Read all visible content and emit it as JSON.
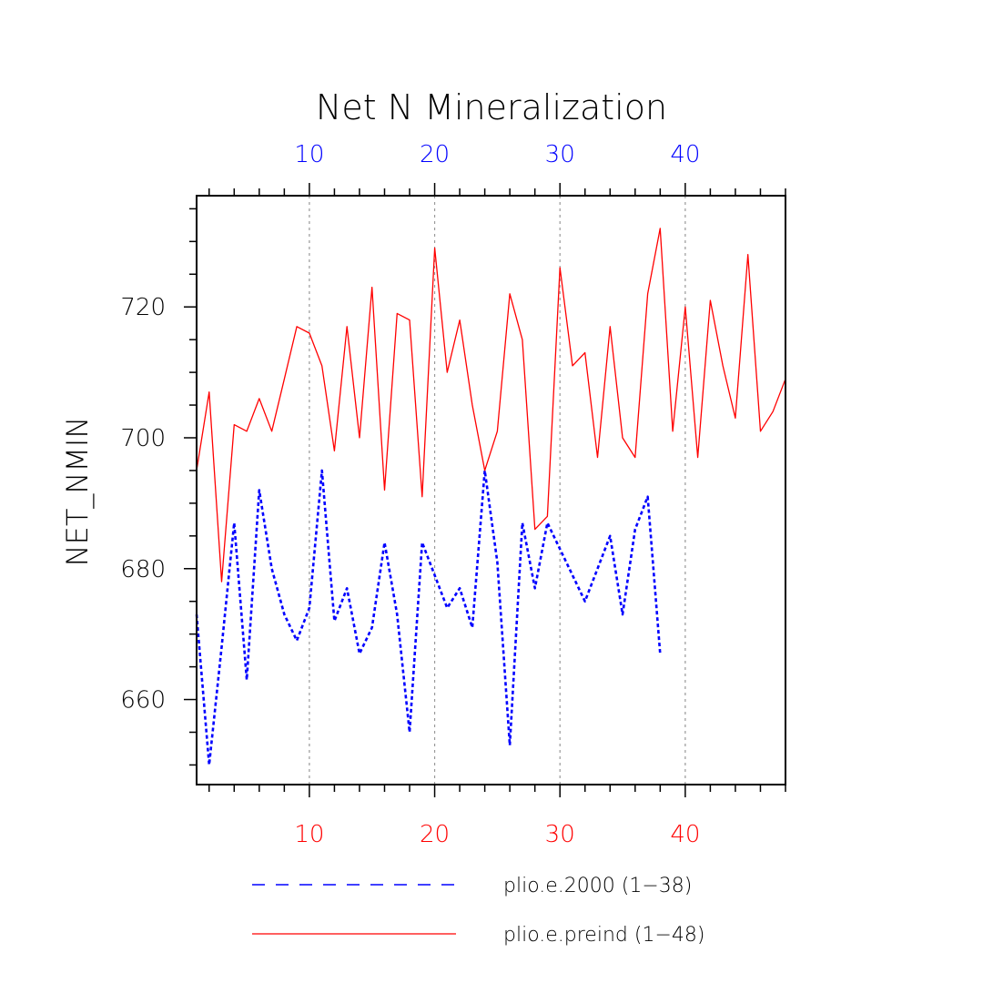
{
  "chart_data": {
    "type": "line",
    "title": "Net N Mineralization",
    "ylabel": "NET_NMIN",
    "ylim": [
      647,
      737
    ],
    "yticks": [
      "660",
      "680",
      "700",
      "720"
    ],
    "ytick_values": [
      660,
      680,
      700,
      720
    ],
    "xticks_bottom": [
      "10",
      "20",
      "30",
      "40"
    ],
    "xticks_top": [
      "10",
      "20",
      "30",
      "40"
    ],
    "xtick_values": [
      10,
      20,
      30,
      40
    ],
    "xlim": [
      1,
      48
    ],
    "grid": "vertical dotted at major x ticks",
    "legend_position": "bottom",
    "series": [
      {
        "name": "plio.e.2000 (1−38)",
        "color": "#0000ff",
        "style": "dashed",
        "x": [
          1,
          2,
          3,
          4,
          5,
          6,
          7,
          8,
          9,
          10,
          11,
          12,
          13,
          14,
          15,
          16,
          17,
          18,
          19,
          20,
          21,
          22,
          23,
          24,
          25,
          26,
          27,
          28,
          29,
          30,
          31,
          32,
          33,
          34,
          35,
          36,
          37,
          38
        ],
        "values": [
          673,
          650,
          668,
          687,
          663,
          692,
          680,
          673,
          669,
          674,
          695,
          672,
          677,
          667,
          671,
          684,
          673,
          655,
          684,
          679,
          674,
          677,
          671,
          695,
          681,
          653,
          687,
          677,
          687,
          683,
          679,
          675,
          680,
          685,
          673,
          686,
          691,
          667
        ]
      },
      {
        "name": "plio.e.preind (1−48)",
        "color": "#ff0000",
        "style": "solid",
        "x": [
          1,
          2,
          3,
          4,
          5,
          6,
          7,
          8,
          9,
          10,
          11,
          12,
          13,
          14,
          15,
          16,
          17,
          18,
          19,
          20,
          21,
          22,
          23,
          24,
          25,
          26,
          27,
          28,
          29,
          30,
          31,
          32,
          33,
          34,
          35,
          36,
          37,
          38,
          39,
          40,
          41,
          42,
          43,
          44,
          45,
          46,
          47,
          48
        ],
        "values": [
          695,
          707,
          678,
          702,
          701,
          706,
          701,
          709,
          717,
          716,
          711,
          698,
          717,
          700,
          723,
          692,
          719,
          718,
          691,
          729,
          710,
          718,
          705,
          695,
          701,
          722,
          715,
          686,
          688,
          726,
          711,
          713,
          697,
          717,
          700,
          697,
          722,
          732,
          701,
          720,
          697,
          721,
          711,
          703,
          728,
          701,
          704,
          709
        ]
      }
    ]
  }
}
